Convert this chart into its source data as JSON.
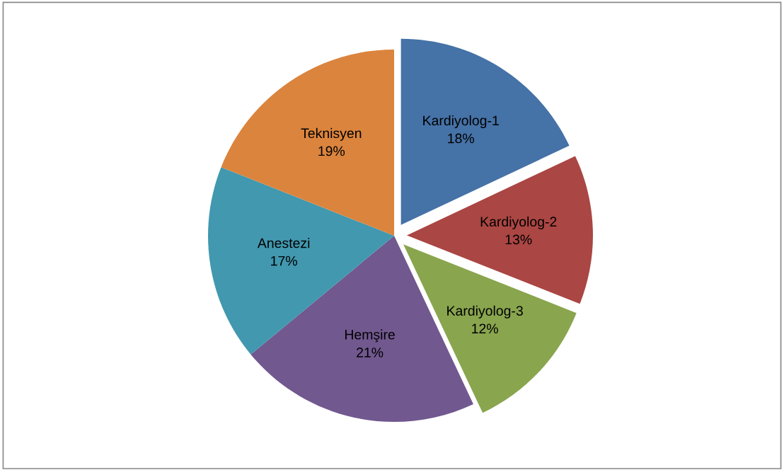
{
  "chart_data": {
    "type": "pie",
    "categories": [
      "Kardiyolog-1",
      "Kardiyolog-2",
      "Kardiyolog-3",
      "Hemşire",
      "Anestezi",
      "Teknisyen"
    ],
    "values": [
      18,
      13,
      12,
      21,
      17,
      19
    ],
    "colors": [
      "#4572a7",
      "#aa4643",
      "#89a54e",
      "#71588f",
      "#4198af",
      "#db843d"
    ],
    "value_labels": [
      "18%",
      "13%",
      "12%",
      "21%",
      "17%",
      "19%"
    ],
    "legend": false
  }
}
